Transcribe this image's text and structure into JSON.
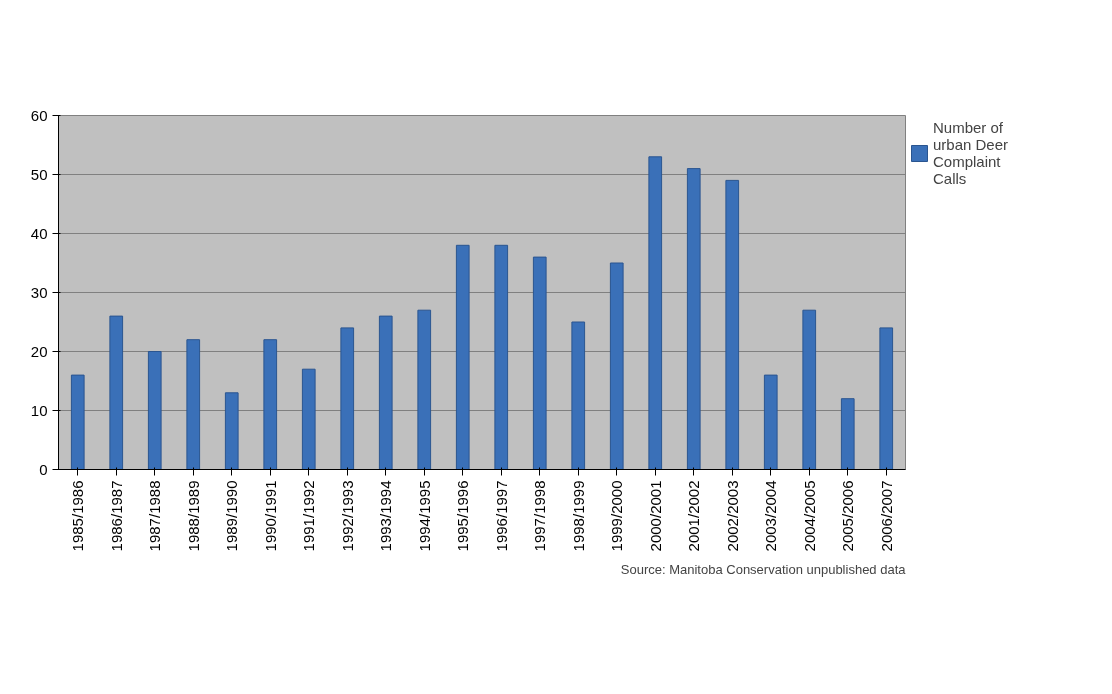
{
  "chart_data": {
    "type": "bar",
    "categories": [
      "1985/1986",
      "1986/1987",
      "1987/1988",
      "1988/1989",
      "1989/1990",
      "1990/1991",
      "1991/1992",
      "1992/1993",
      "1993/1994",
      "1994/1995",
      "1995/1996",
      "1996/1997",
      "1997/1998",
      "1998/1999",
      "1999/2000",
      "2000/2001",
      "2001/2002",
      "2002/2003",
      "2003/2004",
      "2004/2005",
      "2005/2006",
      "2006/2007"
    ],
    "series": [
      {
        "name": "Number of urban Deer Complaint Calls",
        "color": "#3a70b8",
        "values": [
          16,
          26,
          20,
          22,
          13,
          22,
          17,
          24,
          26,
          27,
          38,
          38,
          36,
          25,
          35,
          53,
          51,
          49,
          16,
          27,
          12,
          24
        ]
      }
    ],
    "ylim": [
      0,
      60
    ],
    "yticks": [
      0,
      10,
      20,
      30,
      40,
      50,
      60
    ],
    "grid": "y",
    "legend": "right",
    "annotations": [
      "Source: Manitoba Conservation unpublished data"
    ]
  }
}
